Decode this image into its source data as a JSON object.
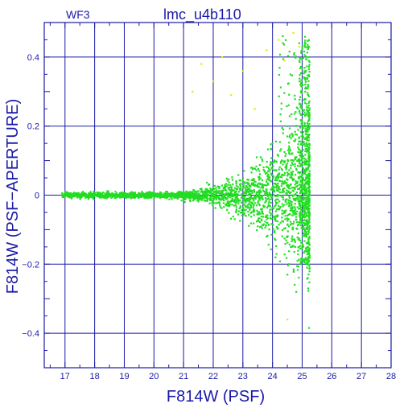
{
  "chart_data": {
    "type": "scatter",
    "title": "lmc_u4b110",
    "panel_label": "WF3",
    "xlabel": "F814W (PSF)",
    "ylabel": "F814W (PSF−APERTURE)",
    "xlim": [
      16.3,
      28.0
    ],
    "ylim": [
      -0.5,
      0.5
    ],
    "grid": true,
    "x_ticks": [
      "17",
      "18",
      "19",
      "20",
      "21",
      "22",
      "23",
      "24",
      "25",
      "26",
      "27",
      "28"
    ],
    "y_ticks": [
      "0.4",
      "0.2",
      "0",
      "−0.2",
      "−0.4"
    ],
    "y_tick_values": [
      0.4,
      0.2,
      0,
      -0.2,
      -0.4
    ],
    "series": [
      {
        "color": "#22dd22",
        "description_points": [
          [
            17.0,
            0.0
          ],
          [
            17.4,
            0.005
          ],
          [
            17.4,
            -0.002
          ],
          [
            18.0,
            0.002
          ],
          [
            18.2,
            -0.003
          ],
          [
            18.4,
            0.004
          ],
          [
            18.5,
            -0.004
          ],
          [
            18.7,
            0.01
          ],
          [
            18.8,
            0.001
          ],
          [
            19.0,
            -0.002
          ],
          [
            19.2,
            0.005
          ],
          [
            19.5,
            -0.004
          ],
          [
            19.8,
            0.006
          ],
          [
            20.0,
            0.0
          ],
          [
            20.2,
            -0.008
          ],
          [
            20.4,
            0.01
          ],
          [
            20.6,
            0.002
          ],
          [
            20.8,
            -0.01
          ],
          [
            21.0,
            0.008
          ],
          [
            21.2,
            -0.006
          ],
          [
            21.5,
            0.012
          ],
          [
            21.7,
            -0.015
          ],
          [
            22.0,
            0.02
          ],
          [
            22.2,
            -0.02
          ],
          [
            22.5,
            0.03
          ],
          [
            22.7,
            -0.03
          ],
          [
            23.0,
            0.05
          ],
          [
            23.1,
            -0.06
          ],
          [
            23.3,
            0.08
          ],
          [
            23.5,
            -0.09
          ],
          [
            23.6,
            0.11
          ],
          [
            23.8,
            -0.12
          ],
          [
            24.0,
            0.15
          ],
          [
            24.1,
            -0.18
          ],
          [
            24.3,
            0.25
          ],
          [
            24.5,
            -0.23
          ],
          [
            24.6,
            0.35
          ],
          [
            24.8,
            -0.28
          ],
          [
            24.9,
            0.44
          ],
          [
            25.0,
            -0.19
          ],
          [
            25.1,
            0.3
          ],
          [
            25.2,
            0.4
          ]
        ]
      },
      {
        "color": "#e8e800",
        "points": [
          [
            21.3,
            0.3
          ],
          [
            21.6,
            0.38
          ],
          [
            22.0,
            0.33
          ],
          [
            22.3,
            0.4
          ],
          [
            22.6,
            0.29
          ],
          [
            23.0,
            0.36
          ],
          [
            23.4,
            0.25
          ],
          [
            23.8,
            0.42
          ],
          [
            24.2,
            0.45
          ],
          [
            24.4,
            0.39
          ],
          [
            24.7,
            0.47
          ],
          [
            24.9,
            0.43
          ],
          [
            24.5,
            -0.36
          ]
        ]
      }
    ]
  }
}
